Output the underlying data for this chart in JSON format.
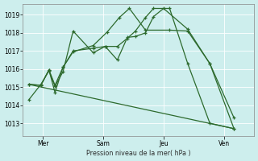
{
  "background_color": "#cdeeed",
  "grid_color": "#b8e0de",
  "line_color": "#2d6a2d",
  "ylabel_text": "Pression niveau de la mer( hPa )",
  "yticks": [
    1013,
    1014,
    1015,
    1016,
    1017,
    1018,
    1019
  ],
  "ylim": [
    1012.3,
    1019.6
  ],
  "xtick_labels": [
    "Mer",
    "Sam",
    "Jeu",
    "Ven"
  ],
  "xtick_positions": [
    1,
    4,
    7,
    10
  ],
  "xlim": [
    0,
    11.5
  ],
  "series1_x": [
    0.3,
    0.9,
    1.3,
    1.6,
    2.0,
    2.5,
    3.5,
    4.1,
    4.7,
    5.2,
    5.6,
    6.1,
    6.5,
    7.0,
    8.2,
    9.3,
    10.5
  ],
  "series1_y": [
    1014.3,
    1015.15,
    1015.9,
    1015.05,
    1015.85,
    1018.1,
    1016.9,
    1017.25,
    1016.5,
    1017.75,
    1017.8,
    1018.0,
    1018.9,
    1019.35,
    1018.2,
    1016.3,
    1013.3
  ],
  "series2_x": [
    0.3,
    0.9,
    1.3,
    1.6,
    2.0,
    2.5,
    3.5,
    4.1,
    4.7,
    5.2,
    5.6,
    6.1,
    6.5,
    7.3,
    8.2,
    9.3,
    10.5
  ],
  "series2_y": [
    1015.15,
    1015.1,
    1015.95,
    1014.7,
    1016.1,
    1017.0,
    1017.15,
    1017.25,
    1017.25,
    1017.7,
    1018.1,
    1018.85,
    1019.35,
    1019.35,
    1016.3,
    1013.0,
    1012.7
  ],
  "series3_x": [
    0.3,
    0.9,
    1.3,
    1.6,
    2.0,
    2.5,
    3.5,
    4.2,
    4.8,
    5.3,
    6.1,
    7.3,
    8.2,
    9.3,
    10.5
  ],
  "series3_y": [
    1015.15,
    1015.1,
    1015.95,
    1015.1,
    1016.1,
    1016.95,
    1017.3,
    1018.05,
    1018.85,
    1019.35,
    1018.15,
    1018.15,
    1018.1,
    1016.3,
    1012.7
  ],
  "trend_x": [
    0.3,
    10.5
  ],
  "trend_y": [
    1015.15,
    1012.7
  ]
}
